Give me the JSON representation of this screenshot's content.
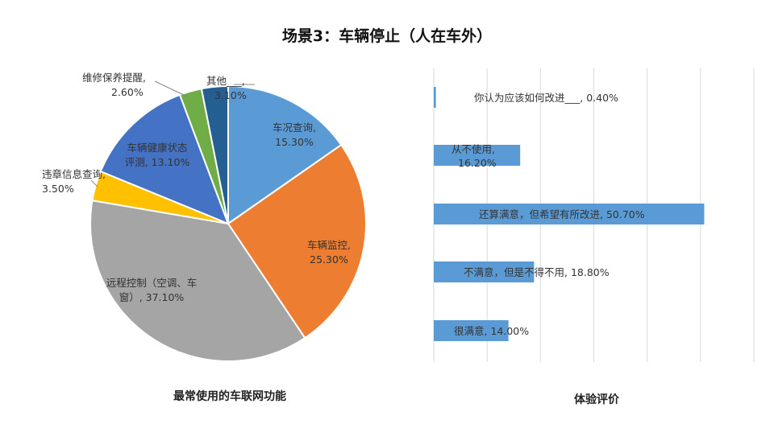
{
  "title": "场景3：车辆停止（人在车外）",
  "chart_data": [
    {
      "type": "pie",
      "caption": "最常使用的车联网功能",
      "slices": [
        {
          "name": "车况查询",
          "value": 15.3,
          "label_line1": "车况查询,",
          "label_line2": "15.30%",
          "color": "#5B9BD5"
        },
        {
          "name": "车辆监控",
          "value": 25.3,
          "label_line1": "车辆监控,",
          "label_line2": "25.30%",
          "color": "#ED7D31"
        },
        {
          "name": "远程控制（空调、车窗）",
          "value": 37.1,
          "label_line1": "远程控制（空调、车",
          "label_line2": "窗）, 37.10%",
          "color": "#A5A5A5"
        },
        {
          "name": "违章信息查询",
          "value": 3.5,
          "label_line1": "违章信息查询,",
          "label_line2": "3.50%",
          "color": "#FFC000"
        },
        {
          "name": "车辆健康状态评测",
          "value": 13.1,
          "label_line1": "车辆健康状态",
          "label_line2": "评测, 13.10%",
          "color": "#4472C4"
        },
        {
          "name": "维修保养提醒",
          "value": 2.6,
          "label_line1": "维修保养提醒,",
          "label_line2": "2.60%",
          "color": "#70AD47"
        },
        {
          "name": "其他___",
          "value": 3.1,
          "label_line1": "其他___,",
          "label_line2": "3.10%",
          "color": "#255E91"
        }
      ]
    },
    {
      "type": "bar",
      "orientation": "horizontal",
      "caption": "体验评价",
      "xlim": [
        0,
        60
      ],
      "grid": true,
      "bar_color": "#5B9BD5",
      "bars": [
        {
          "name": "你认为应该如何改进___",
          "value": 0.4,
          "label": "你认为应该如何改进___, 0.40%"
        },
        {
          "name": "从不使用",
          "value": 16.2,
          "label_line1": "从不使用,",
          "label_line2": "16.20%"
        },
        {
          "name": "还算满意，但希望有所改进",
          "value": 50.7,
          "label": "还算满意，但希望有所改进, 50.70%"
        },
        {
          "name": "不满意，但是不得不用",
          "value": 18.8,
          "label": "不满意，但是不得不用, 18.80%"
        },
        {
          "name": "很满意",
          "value": 14.0,
          "label": "很满意, 14.00%"
        }
      ]
    }
  ]
}
